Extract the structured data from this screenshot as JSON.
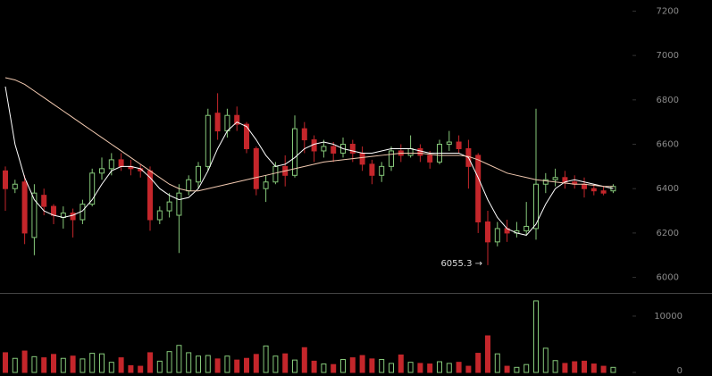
{
  "chart_data": {
    "type": "candlestick",
    "open": [
      6480,
      6400,
      6430,
      6180,
      6370,
      6320,
      6270,
      6290,
      6260,
      6330,
      6470,
      6490,
      6530,
      6500,
      6490,
      6480,
      6260,
      6300,
      6280,
      6390,
      6430,
      6500,
      6740,
      6660,
      6730,
      6690,
      6580,
      6400,
      6430,
      6500,
      6460,
      6670,
      6620,
      6570,
      6590,
      6560,
      6600,
      6560,
      6510,
      6460,
      6500,
      6570,
      6550,
      6580,
      6550,
      6520,
      6600,
      6610,
      6580,
      6550,
      6250,
      6160,
      6220,
      6200,
      6210,
      6220,
      6420,
      6440,
      6450,
      6430,
      6420,
      6400,
      6390,
      6390
    ],
    "high": [
      6500,
      6440,
      6460,
      6420,
      6400,
      6330,
      6320,
      6310,
      6350,
      6490,
      6540,
      6560,
      6560,
      6530,
      6510,
      6500,
      6320,
      6380,
      6420,
      6460,
      6520,
      6760,
      6830,
      6760,
      6770,
      6700,
      6590,
      6460,
      6520,
      6550,
      6730,
      6700,
      6640,
      6620,
      6610,
      6630,
      6620,
      6590,
      6530,
      6520,
      6590,
      6600,
      6640,
      6600,
      6570,
      6620,
      6660,
      6640,
      6620,
      6560,
      6300,
      6250,
      6260,
      6250,
      6340,
      6760,
      6470,
      6490,
      6480,
      6460,
      6450,
      6420,
      6410,
      6420
    ],
    "low": [
      6300,
      6380,
      6150,
      6100,
      6280,
      6240,
      6220,
      6180,
      6240,
      6320,
      6440,
      6460,
      6480,
      6460,
      6450,
      6210,
      6240,
      6270,
      6110,
      6370,
      6400,
      6480,
      6620,
      6630,
      6660,
      6560,
      6370,
      6340,
      6420,
      6410,
      6450,
      6560,
      6520,
      6540,
      6520,
      6540,
      6520,
      6480,
      6420,
      6430,
      6480,
      6520,
      6540,
      6520,
      6490,
      6510,
      6570,
      6560,
      6400,
      6200,
      6055.3,
      6140,
      6160,
      6180,
      6190,
      6170,
      6380,
      6410,
      6400,
      6400,
      6360,
      6370,
      6370,
      6380
    ],
    "close": [
      6400,
      6420,
      6200,
      6380,
      6320,
      6280,
      6290,
      6260,
      6330,
      6470,
      6490,
      6530,
      6500,
      6490,
      6480,
      6260,
      6300,
      6340,
      6380,
      6440,
      6500,
      6730,
      6660,
      6730,
      6690,
      6580,
      6400,
      6430,
      6500,
      6460,
      6670,
      6620,
      6570,
      6590,
      6560,
      6600,
      6560,
      6510,
      6460,
      6500,
      6570,
      6550,
      6580,
      6550,
      6520,
      6600,
      6610,
      6580,
      6500,
      6250,
      6160,
      6220,
      6200,
      6210,
      6230,
      6420,
      6440,
      6450,
      6430,
      6420,
      6400,
      6390,
      6380,
      6410
    ],
    "ma_fast": [
      6860,
      6600,
      6450,
      6350,
      6300,
      6280,
      6270,
      6280,
      6300,
      6350,
      6420,
      6480,
      6500,
      6500,
      6490,
      6450,
      6400,
      6370,
      6350,
      6360,
      6400,
      6480,
      6580,
      6660,
      6700,
      6680,
      6620,
      6550,
      6500,
      6510,
      6540,
      6580,
      6600,
      6610,
      6600,
      6580,
      6570,
      6560,
      6560,
      6570,
      6580,
      6580,
      6580,
      6570,
      6560,
      6560,
      6560,
      6560,
      6540,
      6450,
      6350,
      6270,
      6220,
      6200,
      6190,
      6240,
      6330,
      6400,
      6430,
      6440,
      6430,
      6420,
      6410,
      6400
    ],
    "ma_slow": [
      6900,
      6890,
      6870,
      6840,
      6810,
      6780,
      6750,
      6720,
      6690,
      6660,
      6630,
      6600,
      6570,
      6540,
      6510,
      6480,
      6450,
      6420,
      6400,
      6390,
      6390,
      6400,
      6410,
      6420,
      6430,
      6440,
      6450,
      6460,
      6470,
      6480,
      6490,
      6500,
      6510,
      6520,
      6525,
      6530,
      6535,
      6540,
      6545,
      6550,
      6555,
      6560,
      6560,
      6560,
      6555,
      6550,
      6550,
      6550,
      6545,
      6530,
      6510,
      6490,
      6470,
      6460,
      6450,
      6440,
      6435,
      6430,
      6425,
      6420,
      6420,
      6415,
      6410,
      6410
    ],
    "volume": [
      3500,
      2500,
      3800,
      2800,
      2600,
      3200,
      2500,
      2900,
      2400,
      3400,
      3300,
      1800,
      2600,
      1200,
      1100,
      3500,
      2000,
      3700,
      4800,
      3500,
      2900,
      3000,
      2400,
      2900,
      2200,
      2500,
      3200,
      4700,
      2900,
      3300,
      2200,
      4400,
      2000,
      1500,
      1400,
      2300,
      2600,
      3000,
      2400,
      2300,
      1600,
      3100,
      1800,
      1600,
      1500,
      1900,
      1600,
      1800,
      1100,
      3400,
      6500,
      3300,
      1100,
      900,
      1400,
      12700,
      4300,
      2100,
      1600,
      1900,
      2000,
      1500,
      1100,
      900
    ],
    "up_color": "#86c97a",
    "down_color": "#c4262b",
    "ma_fast_color": "#ffffff",
    "ma_slow_color": "#f2c9b0",
    "ylim": [
      5930,
      7250
    ],
    "yticks": [
      6000,
      6200,
      6400,
      6600,
      6800,
      7000,
      7200
    ],
    "volume_ylim": [
      0,
      13800
    ],
    "volume_yticks": [
      0,
      10000
    ],
    "annotation": "6055.3 →"
  }
}
